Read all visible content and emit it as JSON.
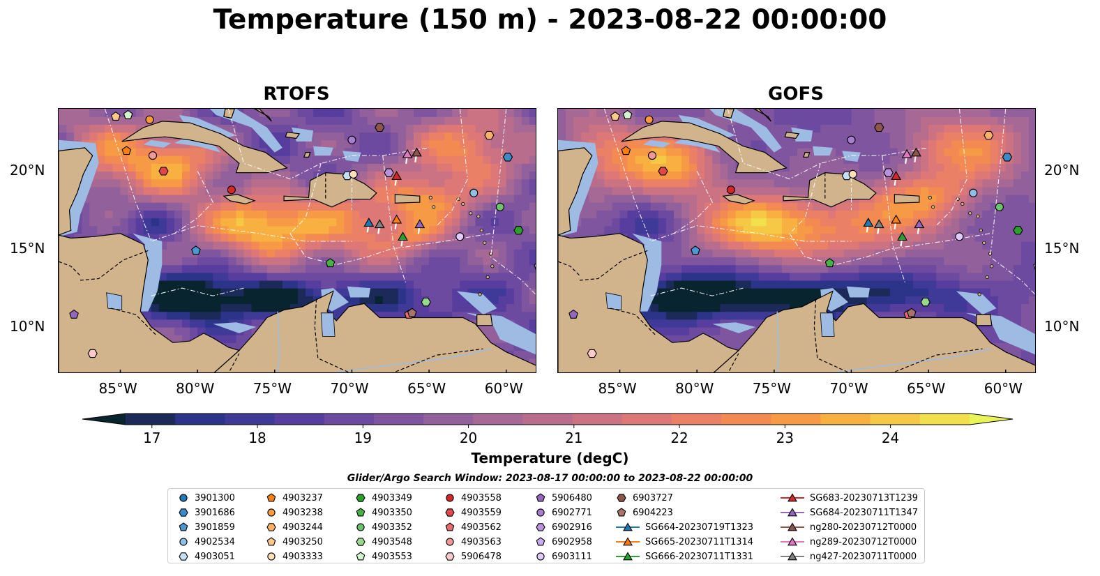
{
  "figure": {
    "title": "Temperature (150 m) - 2023-08-22 00:00:00"
  },
  "panels": [
    {
      "title": "RTOFS",
      "variant": 0
    },
    {
      "title": "GOFS",
      "variant": 1
    }
  ],
  "axes": {
    "lon_ticks": [
      "85°W",
      "80°W",
      "75°W",
      "70°W",
      "65°W",
      "60°W"
    ],
    "lon_values": [
      -85,
      -80,
      -75,
      -70,
      -65,
      -60
    ],
    "lat_ticks": [
      "20°N",
      "15°N",
      "10°N"
    ],
    "lat_values": [
      20,
      15,
      10
    ],
    "lon_range": [
      -89,
      -58
    ],
    "lat_range": [
      7,
      24
    ]
  },
  "colorbar": {
    "label": "Temperature (degC)",
    "ticks": [
      "17",
      "18",
      "19",
      "20",
      "21",
      "22",
      "23",
      "24"
    ],
    "tick_values": [
      17,
      18,
      19,
      20,
      21,
      22,
      23,
      24
    ],
    "range": [
      16.5,
      25.0
    ],
    "extend": "both",
    "colors": [
      "#08242f",
      "#1c2a5a",
      "#2b3489",
      "#3f3a98",
      "#573d9e",
      "#6c4aa0",
      "#7f559f",
      "#92609b",
      "#a66895",
      "#b86d8c",
      "#cb7283",
      "#dd7876",
      "#ea8065",
      "#f28a52",
      "#f79a45",
      "#f8b040",
      "#f5c845",
      "#f1df4c",
      "#e9f45a"
    ]
  },
  "legend": {
    "title": "Glider/Argo Search Window: 2023-08-17 00:00:00 to 2023-08-22 00:00:00",
    "columns": [
      [
        {
          "label": "3901300",
          "marker": "circle",
          "color": "#1f77b4"
        },
        {
          "label": "3901686",
          "marker": "hexagon",
          "color": "#3a8cc8"
        },
        {
          "label": "3901859",
          "marker": "pentagon",
          "color": "#4a98d0"
        },
        {
          "label": "4902534",
          "marker": "circle",
          "color": "#8ec0e6"
        },
        {
          "label": "4903051",
          "marker": "hexagon",
          "color": "#c6e0f5"
        }
      ],
      [
        {
          "label": "4903237",
          "marker": "pentagon",
          "color": "#ff7f0e"
        },
        {
          "label": "4903238",
          "marker": "circle",
          "color": "#ff9a3d"
        },
        {
          "label": "4903244",
          "marker": "hexagon",
          "color": "#ffb266"
        },
        {
          "label": "4903250",
          "marker": "pentagon",
          "color": "#ffc98c"
        },
        {
          "label": "4903333",
          "marker": "circle",
          "color": "#ffe0b8"
        }
      ],
      [
        {
          "label": "4903349",
          "marker": "hexagon",
          "color": "#2ca02c"
        },
        {
          "label": "4903350",
          "marker": "pentagon",
          "color": "#47b347"
        },
        {
          "label": "4903352",
          "marker": "circle",
          "color": "#6cc36c"
        },
        {
          "label": "4903548",
          "marker": "hexagon",
          "color": "#98d98e"
        },
        {
          "label": "4903553",
          "marker": "pentagon",
          "color": "#d2f5cc"
        }
      ],
      [
        {
          "label": "4903558",
          "marker": "circle",
          "color": "#d62728"
        },
        {
          "label": "4903559",
          "marker": "hexagon",
          "color": "#e0474a"
        },
        {
          "label": "4903562",
          "marker": "pentagon",
          "color": "#ea6b6e"
        },
        {
          "label": "4903563",
          "marker": "circle",
          "color": "#f29898"
        },
        {
          "label": "5906478",
          "marker": "hexagon",
          "color": "#fbcaca"
        }
      ],
      [
        {
          "label": "5906480",
          "marker": "pentagon",
          "color": "#9467bd"
        },
        {
          "label": "6902771",
          "marker": "circle",
          "color": "#a87fcf"
        },
        {
          "label": "6902916",
          "marker": "hexagon",
          "color": "#b994dd"
        },
        {
          "label": "6902958",
          "marker": "pentagon",
          "color": "#cbaef0"
        },
        {
          "label": "6903111",
          "marker": "circle",
          "color": "#e0ccff"
        }
      ],
      [
        {
          "label": "6903727",
          "marker": "hexagon",
          "color": "#8c564b"
        },
        {
          "label": "6904223",
          "marker": "pentagon",
          "color": "#a8736a"
        },
        {
          "label": "SG664-20230719T1323",
          "marker": "triangle",
          "color": "#1f77b4",
          "line": true
        },
        {
          "label": "SG665-20230711T1314",
          "marker": "triangle",
          "color": "#ff7f0e",
          "line": true
        },
        {
          "label": "SG666-20230711T1331",
          "marker": "triangle",
          "color": "#2ca02c",
          "line": true
        }
      ],
      [
        {
          "label": "SG683-20230713T1239",
          "marker": "triangle",
          "color": "#d62728",
          "line": true
        },
        {
          "label": "SG684-20230711T1347",
          "marker": "triangle",
          "color": "#9467bd",
          "line": true
        },
        {
          "label": "ng280-20230712T0000",
          "marker": "triangle",
          "color": "#8c564b",
          "line": true
        },
        {
          "label": "ng289-20230712T0000",
          "marker": "triangle",
          "color": "#e377c2",
          "line": true
        },
        {
          "label": "ng427-20230711T0000",
          "marker": "triangle",
          "color": "#7f7f7f",
          "line": true
        }
      ]
    ]
  },
  "chart_data": {
    "type": "heatmap",
    "variable": "Temperature (degC)",
    "depth": "150 m",
    "time": "2023-08-22 00:00:00",
    "panels": [
      "RTOFS",
      "GOFS"
    ],
    "lon_range": [
      -89,
      -58
    ],
    "lat_range": [
      7,
      24
    ],
    "colorbar_range": [
      17,
      24
    ],
    "observations": [
      {
        "id": "3901686",
        "lon": -59.9,
        "lat": 20.9
      },
      {
        "id": "3901859",
        "lon": -80.1,
        "lat": 14.9
      },
      {
        "id": "4902534",
        "lon": -62.1,
        "lat": 18.6
      },
      {
        "id": "4903051",
        "lon": -70.3,
        "lat": 19.7
      },
      {
        "id": "4903237",
        "lon": -84.6,
        "lat": 21.3
      },
      {
        "id": "4903238",
        "lon": -83.1,
        "lat": 23.3
      },
      {
        "id": "4903244",
        "lon": -61.1,
        "lat": 22.3
      },
      {
        "id": "4903250",
        "lon": -85.3,
        "lat": 23.5
      },
      {
        "id": "4903333",
        "lon": -69.9,
        "lat": 19.8
      },
      {
        "id": "4903349",
        "lon": -59.2,
        "lat": 16.2
      },
      {
        "id": "4903350",
        "lon": -71.4,
        "lat": 14.1
      },
      {
        "id": "4903352",
        "lon": -60.4,
        "lat": 17.7
      },
      {
        "id": "4903548",
        "lon": -65.2,
        "lat": 11.6
      },
      {
        "id": "4903553",
        "lon": -84.5,
        "lat": 23.6
      },
      {
        "id": "4903558",
        "lon": -77.8,
        "lat": 18.8
      },
      {
        "id": "4903559",
        "lon": -82.2,
        "lat": 20.0
      },
      {
        "id": "4903562",
        "lon": -66.3,
        "lat": 10.8
      },
      {
        "id": "4903563",
        "lon": -82.9,
        "lat": 21.0
      },
      {
        "id": "5906478",
        "lon": -86.8,
        "lat": 8.3
      },
      {
        "id": "5906480",
        "lon": -88.0,
        "lat": 10.8
      },
      {
        "id": "6902771",
        "lon": -70.0,
        "lat": 22.0
      },
      {
        "id": "6902916",
        "lon": -67.6,
        "lat": 19.9
      },
      {
        "id": "6902958",
        "lon": -57.9,
        "lat": 13.9
      },
      {
        "id": "6903111",
        "lon": -63.0,
        "lat": 15.8
      },
      {
        "id": "6903727",
        "lon": -68.2,
        "lat": 22.8
      },
      {
        "id": "6904223",
        "lon": -66.1,
        "lat": 10.9
      },
      {
        "id": "SG664-20230719T1323",
        "lon": -68.9,
        "lat": 16.7
      },
      {
        "id": "SG665-20230711T1314",
        "lon": -67.1,
        "lat": 16.9
      },
      {
        "id": "SG666-20230711T1331",
        "lon": -66.7,
        "lat": 15.8
      },
      {
        "id": "SG683-20230713T1239",
        "lon": -67.1,
        "lat": 19.7
      },
      {
        "id": "SG684-20230711T1347",
        "lon": -65.6,
        "lat": 16.6
      },
      {
        "id": "ng280-20230712T0000",
        "lon": -65.8,
        "lat": 21.2
      },
      {
        "id": "ng289-20230712T0000",
        "lon": -66.4,
        "lat": 21.1
      },
      {
        "id": "ng427-20230711T0000",
        "lon": -68.2,
        "lat": 16.6
      }
    ]
  }
}
